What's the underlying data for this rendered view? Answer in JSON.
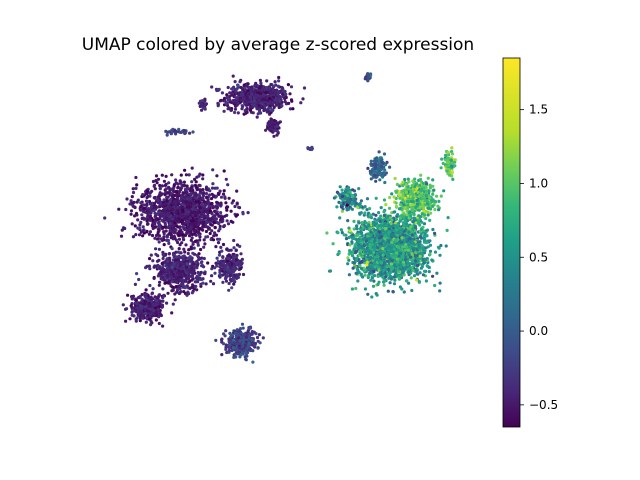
{
  "chart_data": {
    "type": "scatter",
    "title": "UMAP colored by average z-scored expression",
    "xlabel": "",
    "ylabel": "",
    "axes_visible": false,
    "grid": false,
    "colormap": "viridis",
    "colorbar": {
      "placement": "right",
      "vmin": -0.65,
      "vmax": 1.85,
      "ticks": [
        -0.5,
        0.0,
        0.5,
        1.0,
        1.5
      ],
      "tick_labels": [
        "−0.5",
        "0.0",
        "0.5",
        "1.0",
        "1.5"
      ]
    },
    "x_range": [
      -8,
      17
    ],
    "y_range": [
      -6,
      14
    ],
    "clusters": [
      {
        "id": "top-arc",
        "center": [
          3.1,
          12.5
        ],
        "spread": [
          1.8,
          0.7
        ],
        "value_mean": -0.45,
        "value_sd": 0.1,
        "points": 650
      },
      {
        "id": "top-arc-tail",
        "center": [
          4.2,
          10.8
        ],
        "spread": [
          0.4,
          0.35
        ],
        "value_mean": -0.45,
        "value_sd": 0.08,
        "points": 90
      },
      {
        "id": "top-left-spot",
        "center": [
          -0.6,
          12.1
        ],
        "spread": [
          0.3,
          0.3
        ],
        "value_mean": -0.4,
        "value_sd": 0.08,
        "points": 25
      },
      {
        "id": "small-strip",
        "center": [
          -2.2,
          10.5
        ],
        "spread": [
          0.7,
          0.15
        ],
        "value_mean": -0.2,
        "value_sd": 0.1,
        "points": 35
      },
      {
        "id": "tiny-right",
        "center": [
          6.8,
          9.5
        ],
        "spread": [
          0.2,
          0.1
        ],
        "value_mean": -0.2,
        "value_sd": 0.08,
        "points": 10
      },
      {
        "id": "top-isolate",
        "center": [
          10.7,
          13.7
        ],
        "spread": [
          0.15,
          0.2
        ],
        "value_mean": -0.1,
        "value_sd": 0.1,
        "points": 20
      },
      {
        "id": "left-mass",
        "center": [
          -2.0,
          5.8
        ],
        "spread": [
          2.6,
          1.4
        ],
        "value_mean": -0.5,
        "value_sd": 0.1,
        "points": 1300
      },
      {
        "id": "left-mid",
        "center": [
          -2.2,
          2.3
        ],
        "spread": [
          1.4,
          0.9
        ],
        "value_mean": -0.45,
        "value_sd": 0.1,
        "points": 500
      },
      {
        "id": "left-lower",
        "center": [
          -4.4,
          0.2
        ],
        "spread": [
          0.9,
          0.7
        ],
        "value_mean": -0.45,
        "value_sd": 0.1,
        "points": 350
      },
      {
        "id": "left-mid-right",
        "center": [
          1.2,
          2.5
        ],
        "spread": [
          0.7,
          0.8
        ],
        "value_mean": -0.4,
        "value_sd": 0.1,
        "points": 220
      },
      {
        "id": "bottom-blob",
        "center": [
          2.0,
          -1.9
        ],
        "spread": [
          0.9,
          0.6
        ],
        "value_mean": -0.2,
        "value_sd": 0.15,
        "points": 320
      },
      {
        "id": "right-mass",
        "center": [
          12.2,
          3.7
        ],
        "spread": [
          2.1,
          1.5
        ],
        "value_mean": 0.55,
        "value_sd": 0.3,
        "points": 2200
      },
      {
        "id": "right-upper",
        "center": [
          14.0,
          6.6
        ],
        "spread": [
          1.0,
          0.8
        ],
        "value_mean": 0.95,
        "value_sd": 0.3,
        "points": 600
      },
      {
        "id": "right-neck",
        "center": [
          11.4,
          8.4
        ],
        "spread": [
          0.5,
          0.5
        ],
        "value_mean": 0.05,
        "value_sd": 0.15,
        "points": 120
      },
      {
        "id": "right-left-arm",
        "center": [
          9.3,
          6.5
        ],
        "spread": [
          0.6,
          0.5
        ],
        "value_mean": 0.4,
        "value_sd": 0.3,
        "points": 150
      },
      {
        "id": "right-spike",
        "center": [
          16.3,
          8.6
        ],
        "spread": [
          0.25,
          0.55
        ],
        "value_mean": 1.05,
        "value_sd": 0.25,
        "points": 120
      }
    ]
  }
}
